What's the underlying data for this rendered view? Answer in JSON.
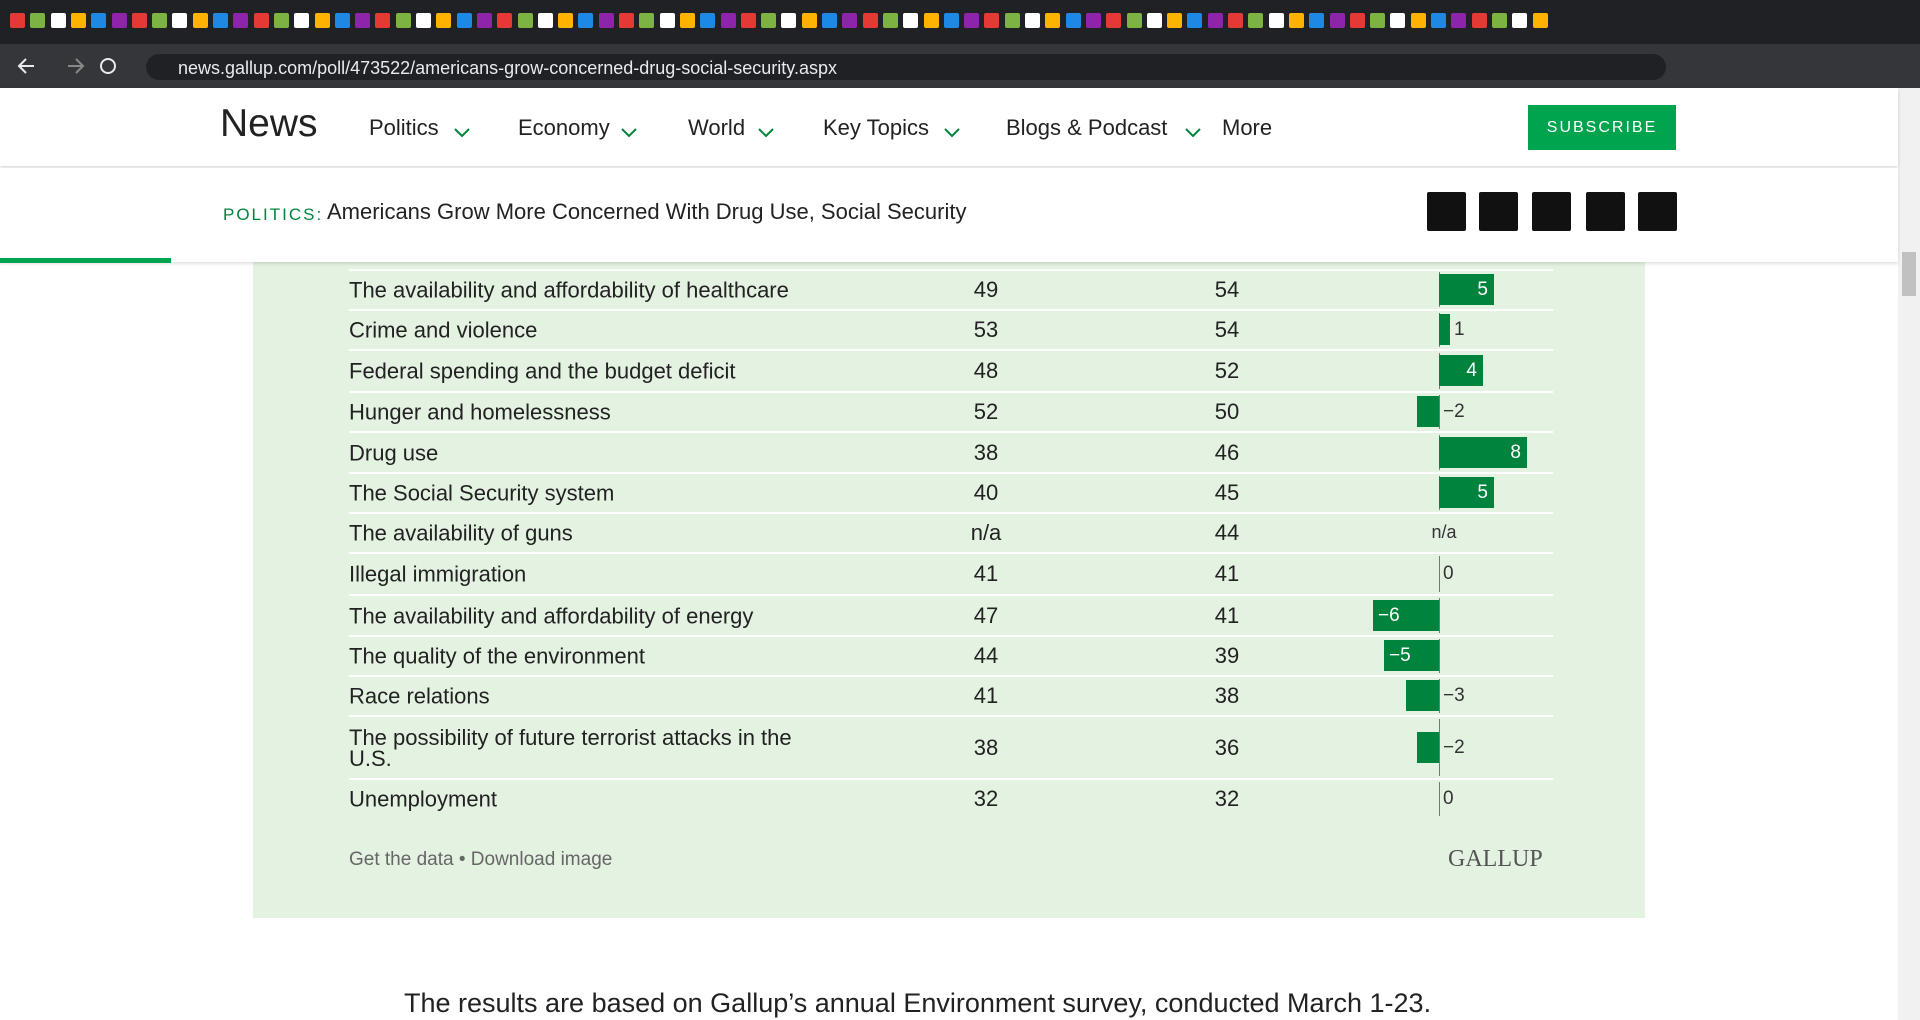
{
  "browser": {
    "url": "news.gallup.com/poll/473522/americans-grow-concerned-drug-social-security.aspx"
  },
  "header": {
    "logo": "News",
    "nav": [
      "Politics",
      "Economy",
      "World",
      "Key Topics",
      "Blogs & Podcast",
      "More"
    ],
    "subscribe": "SUBSCRIBE"
  },
  "subheader": {
    "section": "POLITICS:",
    "title": "Americans Grow More Concerned With Drug Use, Social Security"
  },
  "table": {
    "rows": [
      {
        "label": "The availability and affordability of healthcare",
        "prev": 49,
        "curr": 54,
        "change": 5
      },
      {
        "label": "Crime and violence",
        "prev": 53,
        "curr": 54,
        "change": 1
      },
      {
        "label": "Federal spending and the budget deficit",
        "prev": 48,
        "curr": 52,
        "change": 4
      },
      {
        "label": "Hunger and homelessness",
        "prev": 52,
        "curr": 50,
        "change": -2,
        "change_label": "−2"
      },
      {
        "label": "Drug use",
        "prev": 38,
        "curr": 46,
        "change": 8
      },
      {
        "label": "The Social Security system",
        "prev": 40,
        "curr": 45,
        "change": 5
      },
      {
        "label": "The availability of guns",
        "prev": "n/a",
        "curr": 44,
        "change": null,
        "change_label": "n/a"
      },
      {
        "label": "Illegal immigration",
        "prev": 41,
        "curr": 41,
        "change": 0
      },
      {
        "label": "The availability and affordability of energy",
        "prev": 47,
        "curr": 41,
        "change": -6,
        "change_label": "−6"
      },
      {
        "label": "The quality of the environment",
        "prev": 44,
        "curr": 39,
        "change": -5,
        "change_label": "−5"
      },
      {
        "label": "Race relations",
        "prev": 41,
        "curr": 38,
        "change": -3,
        "change_label": "−3"
      },
      {
        "label": "The possibility of future terrorist attacks in the U.S.",
        "prev": 38,
        "curr": 36,
        "change": -2,
        "change_label": "−2"
      },
      {
        "label": "Unemployment",
        "prev": 32,
        "curr": 32,
        "change": 0
      }
    ]
  },
  "footer": {
    "links": [
      "Get the data",
      "Download image"
    ],
    "separator": "•",
    "brand": "GALLUP"
  },
  "body_text": "The results are based on Gallup’s annual Environment survey, conducted March 1-23."
}
